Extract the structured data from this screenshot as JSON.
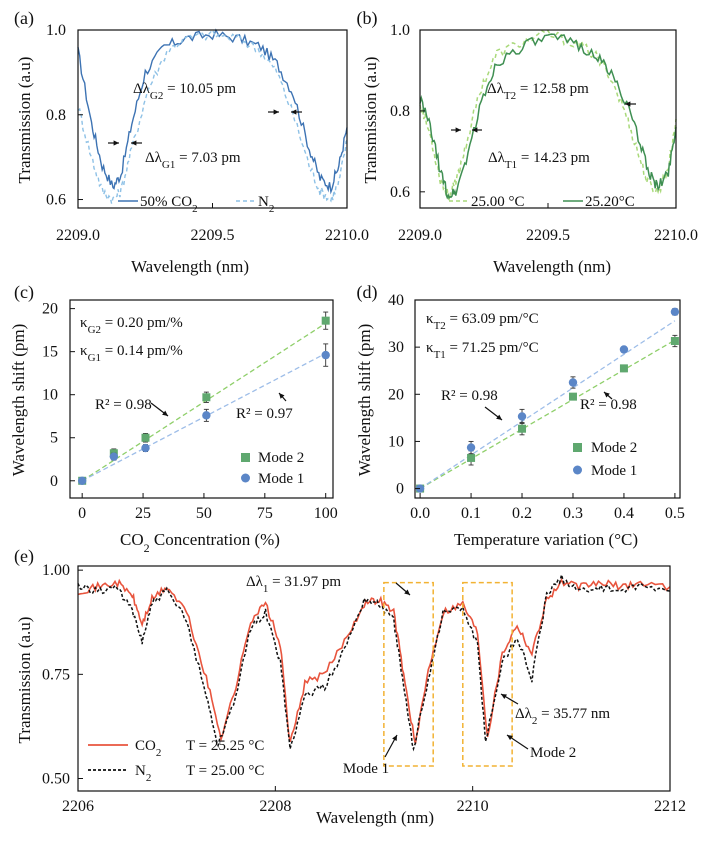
{
  "colors": {
    "blue_dark": "#3d73b3",
    "blue_light": "#8ec1e6",
    "green_dark": "#3f8f52",
    "green_light": "#a9d97a",
    "mode2_marker": "#5fa86f",
    "mode1_marker": "#5b86c7",
    "fit_green": "#8fcf6a",
    "fit_blue": "#9dbde8",
    "co2_red": "#e8553e",
    "n2_black": "#111111",
    "box_orange": "#f2b233"
  },
  "chart_data": [
    {
      "panel": "(a)",
      "type": "line",
      "xlabel": "Wavelength (nm)",
      "ylabel": "Transmission (a.u)",
      "xlim": [
        2209.0,
        2210.0
      ],
      "ylim": [
        0.58,
        1.0
      ],
      "xticks": [
        "2209.0",
        "2209.5",
        "2210.0"
      ],
      "yticks": [
        "0.6",
        "0.8",
        "1.0"
      ],
      "series": [
        {
          "name": "50% CO2",
          "legend_base": "50% CO",
          "legend_sub": "2",
          "style": "solid",
          "x": [
            2209.0,
            2209.05,
            2209.09,
            2209.13,
            2209.16,
            2209.2,
            2209.25,
            2209.32,
            2209.4,
            2209.5,
            2209.6,
            2209.68,
            2209.74,
            2209.8,
            2209.86,
            2209.9,
            2209.94,
            2209.97,
            2210.0
          ],
          "y": [
            0.95,
            0.78,
            0.68,
            0.63,
            0.66,
            0.78,
            0.9,
            0.96,
            0.98,
            0.99,
            0.98,
            0.96,
            0.92,
            0.85,
            0.72,
            0.65,
            0.63,
            0.68,
            0.77
          ]
        },
        {
          "name": "N2",
          "legend_base": "N",
          "legend_sub": "2",
          "style": "dashed",
          "x": [
            2209.0,
            2209.05,
            2209.09,
            2209.13,
            2209.16,
            2209.2,
            2209.26,
            2209.33,
            2209.4,
            2209.5,
            2209.6,
            2209.68,
            2209.74,
            2209.8,
            2209.86,
            2209.9,
            2209.94,
            2209.97,
            2210.0
          ],
          "y": [
            0.82,
            0.7,
            0.62,
            0.6,
            0.62,
            0.72,
            0.86,
            0.95,
            0.98,
            0.99,
            0.98,
            0.95,
            0.9,
            0.8,
            0.68,
            0.62,
            0.6,
            0.64,
            0.74
          ]
        }
      ],
      "annotations": [
        {
          "base": "Δλ",
          "sub": "G2",
          "tail": " = 10.05 pm"
        },
        {
          "base": "Δλ",
          "sub": "G1",
          "tail": " = 7.03 pm"
        }
      ]
    },
    {
      "panel": "(b)",
      "type": "line",
      "xlabel": "Wavelength (nm)",
      "ylabel": "Transmission (a.u)",
      "xlim": [
        2209.0,
        2210.0
      ],
      "ylim": [
        0.56,
        1.0
      ],
      "xticks": [
        "2209.0",
        "2209.5",
        "2210.0"
      ],
      "yticks": [
        "0.6",
        "0.8",
        "1.0"
      ],
      "series": [
        {
          "name": "25.00 °C",
          "style": "dashed",
          "x": [
            2209.0,
            2209.04,
            2209.08,
            2209.11,
            2209.14,
            2209.18,
            2209.24,
            2209.3,
            2209.4,
            2209.5,
            2209.6,
            2209.68,
            2209.74,
            2209.8,
            2209.85,
            2209.89,
            2209.93,
            2209.97,
            2210.0
          ],
          "y": [
            0.82,
            0.74,
            0.63,
            0.59,
            0.62,
            0.72,
            0.86,
            0.94,
            0.97,
            0.99,
            0.97,
            0.94,
            0.89,
            0.8,
            0.7,
            0.62,
            0.6,
            0.66,
            0.78
          ]
        },
        {
          "name": "25.20°C",
          "style": "solid",
          "x": [
            2209.0,
            2209.04,
            2209.08,
            2209.11,
            2209.14,
            2209.18,
            2209.24,
            2209.3,
            2209.4,
            2209.5,
            2209.6,
            2209.68,
            2209.74,
            2209.8,
            2209.86,
            2209.9,
            2209.93,
            2209.97,
            2210.0
          ],
          "y": [
            0.83,
            0.76,
            0.65,
            0.59,
            0.6,
            0.68,
            0.82,
            0.92,
            0.96,
            0.98,
            0.97,
            0.94,
            0.9,
            0.83,
            0.72,
            0.64,
            0.61,
            0.65,
            0.76
          ]
        }
      ],
      "annotations": [
        {
          "base": "Δλ",
          "sub": "T2",
          "tail": " = 12.58 pm"
        },
        {
          "base": "Δλ",
          "sub": "T1",
          "tail": " = 14.23 pm"
        }
      ]
    },
    {
      "panel": "(c)",
      "type": "scatter",
      "xlabel_base": "CO",
      "xlabel_sub": "2",
      "xlabel_tail": " Concentration (%)",
      "ylabel": "Wavelength shift (pm)",
      "xlim": [
        -5,
        103
      ],
      "ylim": [
        -2,
        21
      ],
      "xticks": [
        "0",
        "25",
        "50",
        "75",
        "100"
      ],
      "yticks": [
        "0",
        "5",
        "10",
        "15",
        "20"
      ],
      "series": [
        {
          "name": "Mode 2",
          "x": [
            0,
            13,
            26,
            51,
            100
          ],
          "y": [
            0.0,
            3.2,
            5.0,
            9.7,
            18.6
          ],
          "err": [
            0.3,
            0.5,
            0.5,
            0.6,
            1.0
          ],
          "fit": [
            [
              0,
              0.0
            ],
            [
              100,
              18.3
            ]
          ]
        },
        {
          "name": "Mode 1",
          "x": [
            0,
            13,
            26,
            51,
            100
          ],
          "y": [
            0.0,
            2.8,
            3.8,
            7.6,
            14.6
          ],
          "err": [
            0.3,
            0.4,
            0.4,
            0.7,
            1.3
          ],
          "fit": [
            [
              0,
              0.0
            ],
            [
              100,
              14.8
            ]
          ]
        }
      ],
      "annotations": [
        {
          "base": "κ",
          "sub": "G2",
          "tail": " = 0.20 pm/%"
        },
        {
          "base": "κ",
          "sub": "G1",
          "tail": " = 0.14 pm/%"
        },
        {
          "text": "R² = 0.98"
        },
        {
          "text": "R² = 0.97"
        }
      ]
    },
    {
      "panel": "(d)",
      "type": "scatter",
      "xlabel": "Temperature variation (°C)",
      "ylabel": "Wavelength shift (pm)",
      "xlim": [
        -0.01,
        0.51
      ],
      "ylim": [
        -2,
        40
      ],
      "xticks": [
        "0.0",
        "0.1",
        "0.2",
        "0.3",
        "0.4",
        "0.5"
      ],
      "yticks": [
        "0",
        "10",
        "20",
        "30",
        "40"
      ],
      "series": [
        {
          "name": "Mode 2",
          "x": [
            0.0,
            0.1,
            0.2,
            0.3,
            0.4,
            0.5
          ],
          "y": [
            0.0,
            6.5,
            12.7,
            19.5,
            25.5,
            31.3
          ],
          "err": [
            0.5,
            1.5,
            1.3,
            0.6,
            0.7,
            1.2
          ],
          "fit": [
            [
              0.0,
              0.0
            ],
            [
              0.5,
              31.5
            ]
          ]
        },
        {
          "name": "Mode 1",
          "x": [
            0.0,
            0.1,
            0.2,
            0.3,
            0.4,
            0.5
          ],
          "y": [
            0.0,
            8.7,
            15.3,
            22.5,
            29.5,
            37.5
          ],
          "err": [
            0.5,
            1.3,
            1.5,
            1.2,
            0.6,
            0.7
          ],
          "fit": [
            [
              0.0,
              0.0
            ],
            [
              0.5,
              35.6
            ]
          ]
        }
      ],
      "annotations": [
        {
          "base": "κ",
          "sub": "T2",
          "tail": " = 63.09 pm/°C"
        },
        {
          "base": "κ",
          "sub": "T1",
          "tail": " = 71.25 pm/°C"
        },
        {
          "text": "R² = 0.98"
        },
        {
          "text": "R² = 0.98"
        }
      ]
    },
    {
      "panel": "(e)",
      "type": "line",
      "xlabel": "Wavelength (nm)",
      "ylabel": "Transmission (a.u)",
      "xlim": [
        2206,
        2212
      ],
      "ylim": [
        0.47,
        1.01
      ],
      "xticks": [
        "2206",
        "2208",
        "2210",
        "2212"
      ],
      "yticks": [
        "0.50",
        "0.75",
        "1.00"
      ],
      "series": [
        {
          "name": "CO2",
          "legend_base": "CO",
          "legend_sub": "2",
          "style": "solid",
          "x": [
            2206.0,
            2206.2,
            2206.4,
            2206.55,
            2206.65,
            2206.75,
            2206.9,
            2207.1,
            2207.3,
            2207.45,
            2207.6,
            2207.75,
            2207.9,
            2208.05,
            2208.15,
            2208.3,
            2208.5,
            2208.7,
            2208.9,
            2209.05,
            2209.2,
            2209.3,
            2209.42,
            2209.55,
            2209.7,
            2209.9,
            2210.05,
            2210.15,
            2210.3,
            2210.45,
            2210.6,
            2210.75,
            2210.9,
            2211.1,
            2211.3,
            2211.5,
            2211.7,
            2212.0
          ],
          "y": [
            0.95,
            0.96,
            0.97,
            0.94,
            0.87,
            0.93,
            0.96,
            0.9,
            0.74,
            0.6,
            0.72,
            0.88,
            0.92,
            0.82,
            0.58,
            0.73,
            0.75,
            0.83,
            0.92,
            0.93,
            0.9,
            0.75,
            0.58,
            0.76,
            0.9,
            0.92,
            0.85,
            0.6,
            0.8,
            0.87,
            0.8,
            0.93,
            0.97,
            0.96,
            0.97,
            0.96,
            0.97,
            0.96
          ]
        },
        {
          "name": "N2",
          "legend_base": "N",
          "legend_sub": "2",
          "style": "dotted",
          "x": [
            2206.0,
            2206.2,
            2206.4,
            2206.55,
            2206.65,
            2206.75,
            2206.9,
            2207.1,
            2207.3,
            2207.42,
            2207.6,
            2207.75,
            2207.9,
            2208.05,
            2208.15,
            2208.3,
            2208.5,
            2208.7,
            2208.9,
            2209.05,
            2209.2,
            2209.3,
            2209.4,
            2209.55,
            2209.7,
            2209.9,
            2210.05,
            2210.13,
            2210.3,
            2210.45,
            2210.6,
            2210.75,
            2210.9,
            2211.1,
            2211.3,
            2211.5,
            2211.7,
            2212.0
          ],
          "y": [
            0.96,
            0.95,
            0.96,
            0.9,
            0.83,
            0.92,
            0.95,
            0.88,
            0.7,
            0.58,
            0.7,
            0.86,
            0.9,
            0.78,
            0.57,
            0.7,
            0.72,
            0.81,
            0.93,
            0.92,
            0.88,
            0.72,
            0.57,
            0.74,
            0.9,
            0.91,
            0.82,
            0.59,
            0.78,
            0.84,
            0.74,
            0.94,
            0.98,
            0.95,
            0.96,
            0.95,
            0.96,
            0.95
          ]
        }
      ],
      "annotations": [
        {
          "base": "Δλ",
          "sub": "1",
          "tail": " = 31.97 pm"
        },
        {
          "base": "Δλ",
          "sub": "2",
          "tail": " = 35.77 nm"
        },
        {
          "text": "Mode 1"
        },
        {
          "text": "Mode 2"
        },
        {
          "text": "T = 25.25 °C"
        },
        {
          "text": "T = 25.00 °C"
        }
      ],
      "mode_boxes": [
        {
          "x_range": [
            2209.1,
            2209.6
          ],
          "y_range": [
            0.53,
            0.97
          ]
        },
        {
          "x_range": [
            2209.9,
            2210.4
          ],
          "y_range": [
            0.53,
            0.97
          ]
        }
      ]
    }
  ]
}
